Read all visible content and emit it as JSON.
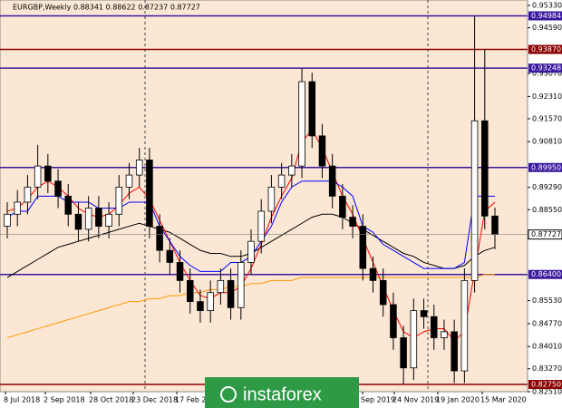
{
  "chart_data": {
    "type": "candlestick",
    "title": "EURGBP,Weekly  0.88341 0.88622 0.87237 0.87727",
    "watermark": "instaforex",
    "ylim": [
      0.8251,
      0.9533
    ],
    "yticks": [
      {
        "value": 0.9533,
        "label": "0.95330"
      },
      {
        "value": 0.9459,
        "label": "0.94590"
      },
      {
        "value": 0.9307,
        "label": "0.93070"
      },
      {
        "value": 0.9231,
        "label": "0.92310"
      },
      {
        "value": 0.9157,
        "label": "0.91570"
      },
      {
        "value": 0.9081,
        "label": "0.90810"
      },
      {
        "value": 0.8929,
        "label": "0.89290"
      },
      {
        "value": 0.8855,
        "label": "0.88550"
      },
      {
        "value": 0.8553,
        "label": "0.85530"
      },
      {
        "value": 0.8477,
        "label": "0.84770"
      },
      {
        "value": 0.8401,
        "label": "0.84010"
      },
      {
        "value": 0.8327,
        "label": "0.83270"
      },
      {
        "value": 0.8251,
        "label": "0.82510"
      }
    ],
    "levels": [
      {
        "value": 0.94984,
        "label": "0.94984",
        "color": "#3a1a9e"
      },
      {
        "value": 0.9387,
        "label": "0.93870",
        "color": "#8b0000"
      },
      {
        "value": 0.93248,
        "label": "0.93248",
        "color": "#3a1a9e"
      },
      {
        "value": 0.8995,
        "label": "0.89950",
        "color": "#3a1a9e"
      },
      {
        "value": 0.864,
        "label": "0.86400",
        "color": "#3a1a9e"
      },
      {
        "value": 0.8275,
        "label": "0.82750",
        "color": "#8b0000"
      }
    ],
    "price_line": {
      "value": 0.87727,
      "label": "0.87727",
      "color": "#808080"
    },
    "xlabels": [
      "8 Jul 2018",
      "2 Sep 2018",
      "28 Oct 2018",
      "23 Dec 2018",
      "17 Feb 2019",
      "Sep 2019",
      "24 Nov 2019",
      "19 Jan 2020",
      "15 Mar 2020"
    ],
    "up_color": "#ffffff",
    "down_color": "#000000",
    "open": [
      0.88,
      0.884,
      0.888,
      0.893,
      0.9,
      0.895,
      0.89,
      0.884,
      0.879,
      0.886,
      0.88,
      0.884,
      0.893,
      0.897,
      0.902,
      0.88,
      0.872,
      0.868,
      0.862,
      0.855,
      0.852,
      0.858,
      0.862,
      0.853,
      0.868,
      0.875,
      0.885,
      0.893,
      0.897,
      0.9,
      0.928,
      0.91,
      0.9,
      0.89,
      0.883,
      0.88,
      0.866,
      0.862,
      0.854,
      0.843,
      0.833,
      0.852,
      0.85,
      0.843,
      0.845,
      0.832,
      0.862,
      0.915,
      0.8834
    ],
    "high": [
      0.888,
      0.892,
      0.897,
      0.907,
      0.904,
      0.899,
      0.894,
      0.888,
      0.89,
      0.89,
      0.888,
      0.897,
      0.901,
      0.906,
      0.906,
      0.884,
      0.876,
      0.872,
      0.866,
      0.859,
      0.862,
      0.866,
      0.866,
      0.872,
      0.879,
      0.889,
      0.897,
      0.901,
      0.904,
      0.9325,
      0.931,
      0.914,
      0.904,
      0.894,
      0.887,
      0.884,
      0.87,
      0.866,
      0.858,
      0.847,
      0.856,
      0.856,
      0.854,
      0.849,
      0.849,
      0.866,
      0.9498,
      0.9387,
      0.8862
    ],
    "low": [
      0.876,
      0.88,
      0.884,
      0.889,
      0.891,
      0.886,
      0.88,
      0.875,
      0.875,
      0.876,
      0.876,
      0.88,
      0.889,
      0.893,
      0.876,
      0.868,
      0.864,
      0.858,
      0.851,
      0.848,
      0.848,
      0.854,
      0.849,
      0.849,
      0.864,
      0.871,
      0.881,
      0.889,
      0.893,
      0.896,
      0.906,
      0.896,
      0.886,
      0.879,
      0.876,
      0.862,
      0.858,
      0.85,
      0.839,
      0.8276,
      0.829,
      0.846,
      0.839,
      0.839,
      0.828,
      0.828,
      0.858,
      0.879,
      0.8724
    ],
    "close": [
      0.884,
      0.888,
      0.893,
      0.9,
      0.895,
      0.89,
      0.884,
      0.879,
      0.886,
      0.88,
      0.884,
      0.893,
      0.897,
      0.902,
      0.88,
      0.872,
      0.868,
      0.862,
      0.855,
      0.852,
      0.858,
      0.862,
      0.853,
      0.868,
      0.875,
      0.885,
      0.893,
      0.897,
      0.9,
      0.928,
      0.91,
      0.9,
      0.89,
      0.883,
      0.88,
      0.866,
      0.862,
      0.854,
      0.843,
      0.833,
      0.852,
      0.85,
      0.843,
      0.845,
      0.832,
      0.862,
      0.915,
      0.8834,
      0.8773
    ],
    "lines": [
      {
        "color": "#ff9900",
        "values": [
          0.843,
          0.844,
          0.845,
          0.846,
          0.847,
          0.848,
          0.849,
          0.85,
          0.851,
          0.852,
          0.853,
          0.854,
          0.855,
          0.855,
          0.856,
          0.856,
          0.857,
          0.857,
          0.858,
          0.858,
          0.859,
          0.859,
          0.86,
          0.86,
          0.861,
          0.861,
          0.862,
          0.862,
          0.862,
          0.863,
          0.863,
          0.863,
          0.863,
          0.863,
          0.863,
          0.863,
          0.863,
          0.863,
          0.863,
          0.863,
          0.863,
          0.863,
          0.863,
          0.863,
          0.863,
          0.863,
          0.863,
          0.864,
          0.864
        ]
      },
      {
        "color": "#000000",
        "values": [
          0.863,
          0.865,
          0.867,
          0.869,
          0.871,
          0.873,
          0.874,
          0.875,
          0.876,
          0.877,
          0.878,
          0.879,
          0.88,
          0.881,
          0.88,
          0.879,
          0.878,
          0.876,
          0.874,
          0.872,
          0.871,
          0.871,
          0.87,
          0.87,
          0.871,
          0.873,
          0.875,
          0.877,
          0.879,
          0.881,
          0.883,
          0.884,
          0.884,
          0.883,
          0.881,
          0.879,
          0.877,
          0.875,
          0.873,
          0.871,
          0.87,
          0.868,
          0.867,
          0.866,
          0.866,
          0.867,
          0.87,
          0.872,
          0.873
        ]
      },
      {
        "color": "#ff0000",
        "values": [
          0.885,
          0.886,
          0.889,
          0.893,
          0.895,
          0.893,
          0.89,
          0.886,
          0.884,
          0.883,
          0.884,
          0.887,
          0.891,
          0.893,
          0.889,
          0.882,
          0.875,
          0.868,
          0.862,
          0.857,
          0.856,
          0.858,
          0.858,
          0.86,
          0.866,
          0.874,
          0.883,
          0.89,
          0.896,
          0.908,
          0.912,
          0.906,
          0.898,
          0.89,
          0.884,
          0.876,
          0.868,
          0.86,
          0.852,
          0.845,
          0.843,
          0.845,
          0.846,
          0.846,
          0.842,
          0.845,
          0.865,
          0.885,
          0.888
        ]
      },
      {
        "color": "#0000ff",
        "values": [
          0.883,
          0.885,
          0.885,
          0.89,
          0.89,
          0.89,
          0.888,
          0.888,
          0.888,
          0.886,
          0.886,
          0.886,
          0.888,
          0.888,
          0.888,
          0.88,
          0.875,
          0.87,
          0.867,
          0.865,
          0.865,
          0.865,
          0.868,
          0.868,
          0.87,
          0.875,
          0.88,
          0.888,
          0.893,
          0.895,
          0.895,
          0.895,
          0.895,
          0.893,
          0.89,
          0.88,
          0.878,
          0.874,
          0.872,
          0.87,
          0.868,
          0.866,
          0.866,
          0.866,
          0.866,
          0.868,
          0.89,
          0.89,
          0.89
        ]
      }
    ]
  }
}
